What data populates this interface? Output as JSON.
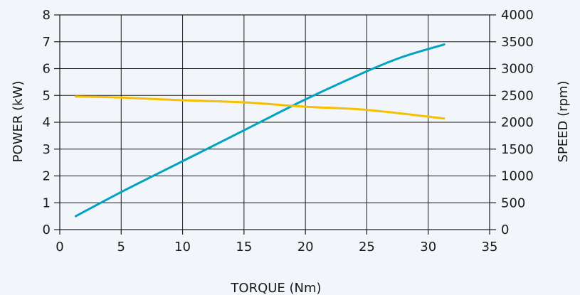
{
  "chart_data": {
    "type": "line",
    "xlabel": "TORQUE (Nm)",
    "ylabel": "POWER (kW)",
    "y2label": "SPEED (rpm)",
    "xlim": [
      0,
      35
    ],
    "ylim": [
      0,
      8
    ],
    "y2lim": [
      0,
      4000
    ],
    "x_ticks": [
      0,
      5,
      10,
      15,
      20,
      25,
      30,
      35
    ],
    "y_ticks": [
      0,
      1,
      2,
      3,
      4,
      5,
      6,
      7,
      8
    ],
    "y2_ticks": [
      0,
      500,
      1000,
      1500,
      2000,
      2500,
      3000,
      3500,
      4000
    ],
    "grid": true,
    "series": [
      {
        "axis": "left",
        "color": "#00a3c4",
        "x": [
          1.3,
          5,
          10,
          15,
          20,
          25,
          28,
          31.3
        ],
        "y": [
          0.5,
          1.4,
          2.55,
          3.7,
          4.85,
          5.9,
          6.45,
          6.9
        ]
      },
      {
        "axis": "right",
        "color": "#f5c000",
        "x": [
          1.3,
          5,
          10,
          15,
          20,
          25,
          31.3
        ],
        "y": [
          2480,
          2460,
          2410,
          2370,
          2290,
          2230,
          2070
        ]
      }
    ]
  }
}
